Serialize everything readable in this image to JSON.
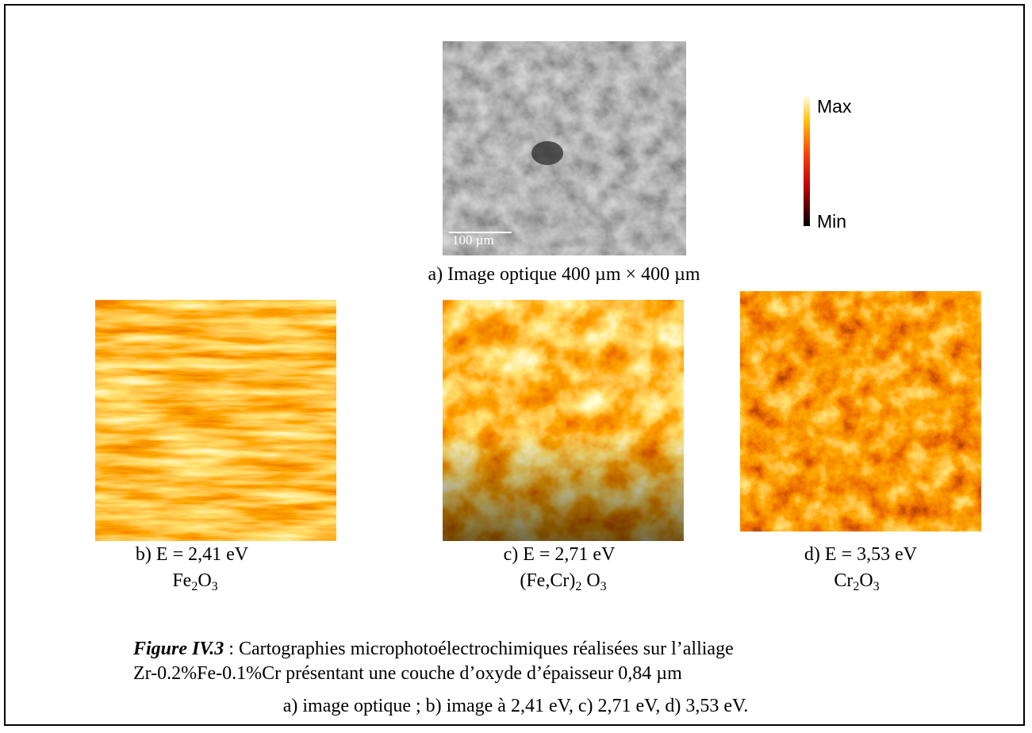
{
  "panels": [
    {
      "label": "a) Image optique 400 µm × 400 µm",
      "scale_bar": "100 µm"
    },
    {
      "label": "b) E = 2,41 eV",
      "formula": [
        "Fe",
        "2",
        "O",
        "3"
      ]
    },
    {
      "label": "c) E = 2,71 eV",
      "formula": [
        "(Fe,Cr)",
        "2",
        " O",
        "3"
      ]
    },
    {
      "label": "d) E = 3,53 eV",
      "formula": [
        "Cr",
        "2",
        "O",
        "3"
      ]
    }
  ],
  "colorbar": {
    "max": "Max",
    "min": "Min"
  },
  "caption": {
    "figure": "Figure IV.3",
    "line1": " : Cartographies microphotoélectrochimiques réalisées sur l’alliage",
    "line2": "Zr-0.2%Fe-0.1%Cr présentant une couche d’oxyde d’épaisseur 0,84 µm",
    "line3": "a) image optique ; b) image à 2,41 eV, c) 2,71 eV, d) 3,53 eV."
  }
}
